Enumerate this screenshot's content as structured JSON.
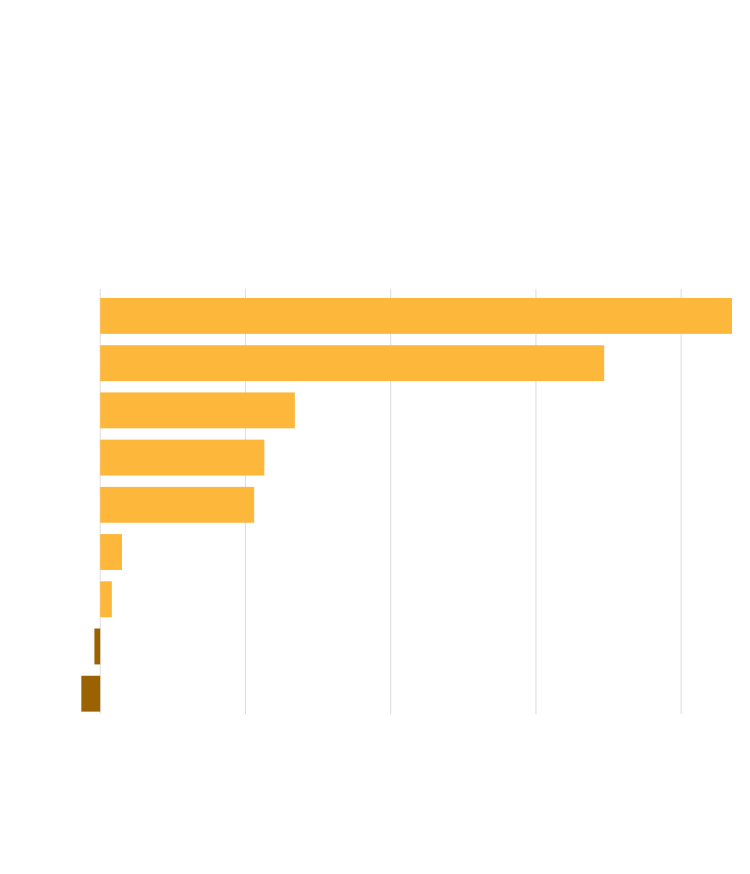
{
  "chart_data": {
    "type": "bar",
    "orientation": "horizontal",
    "categories": [
      null,
      null,
      null,
      null,
      null,
      null,
      null,
      null,
      null
    ],
    "values": [
      43.5,
      34.7,
      13.4,
      11.3,
      10.6,
      1.5,
      0.8,
      -0.4,
      -1.3
    ],
    "color": "#fdb73a",
    "negative_color": "#9a6200",
    "xlim": [
      -6.9,
      43.5
    ],
    "xticks": [
      0,
      10,
      20,
      30,
      40
    ],
    "grid": true
  }
}
